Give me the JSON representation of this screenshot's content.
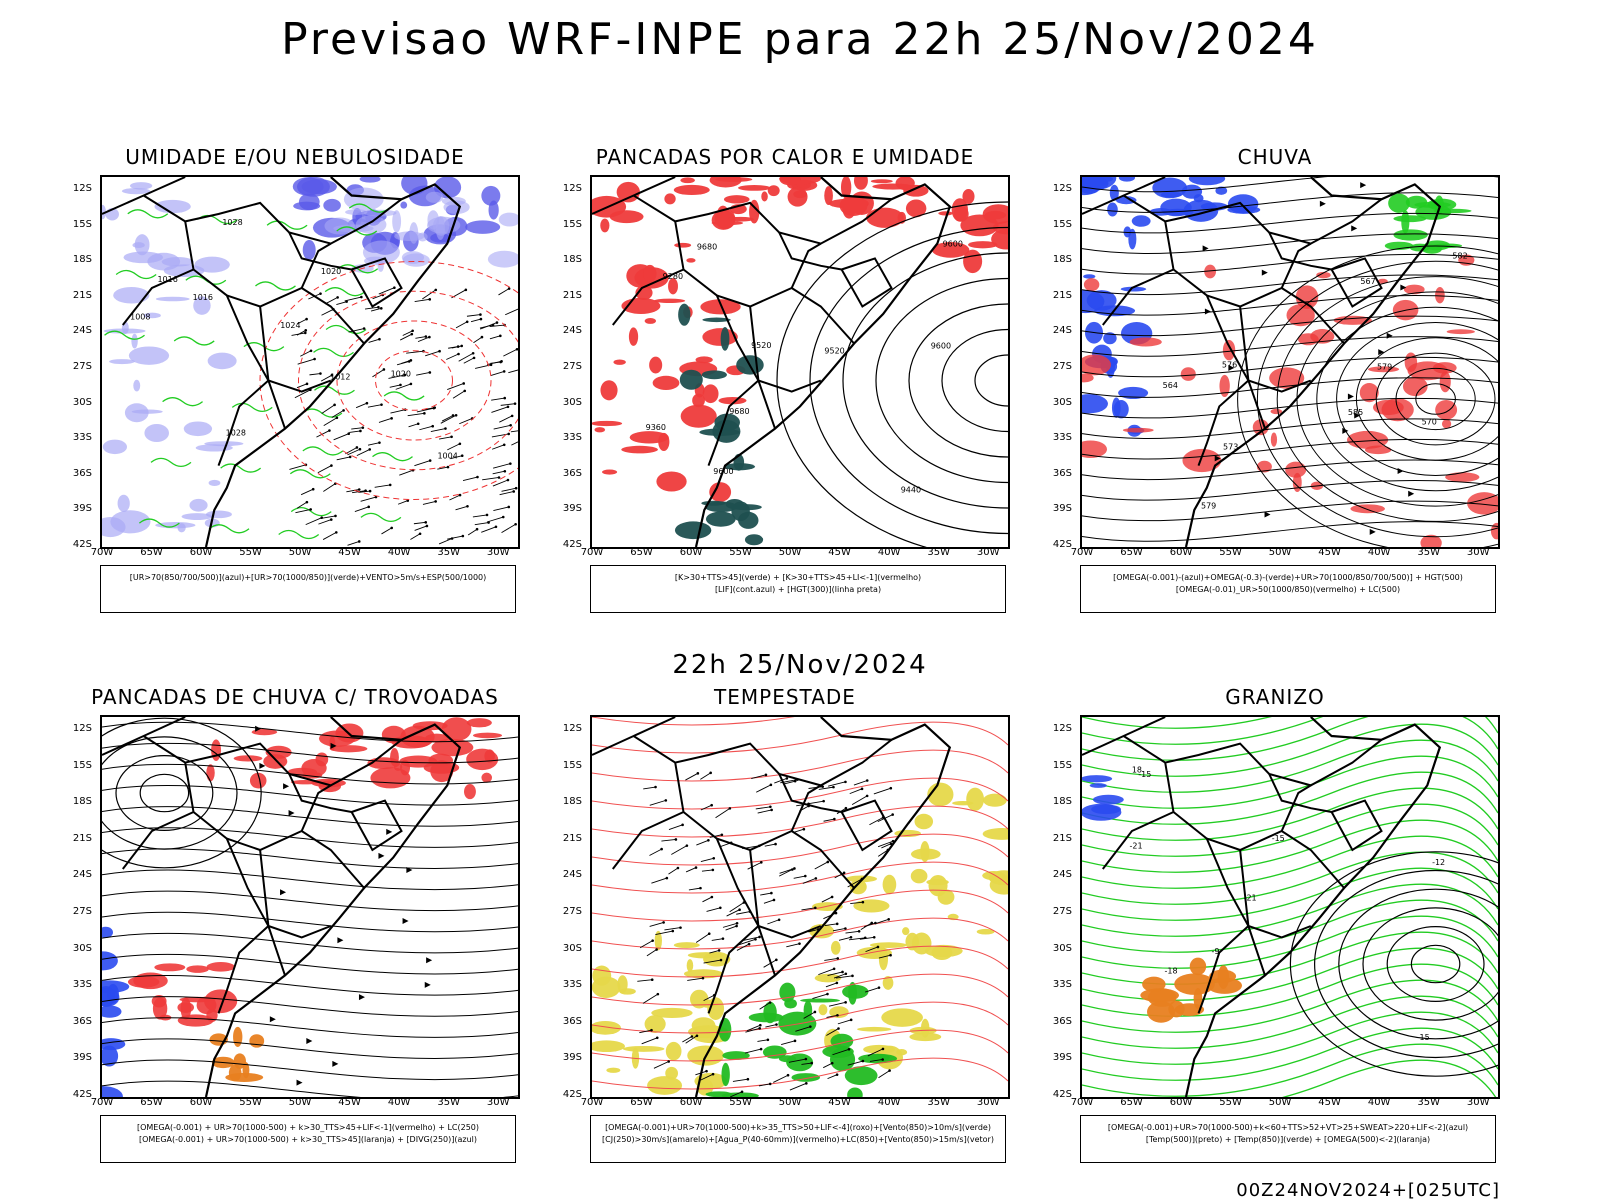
{
  "title": "Previsao WRF-INPE  para 22h 25/Nov/2024",
  "mid_date": "22h 25/Nov/2024",
  "footer": "00Z24NOV2024+[025UTC]",
  "axes": {
    "lat_labels": [
      "12S",
      "15S",
      "18S",
      "21S",
      "24S",
      "27S",
      "30S",
      "33S",
      "36S",
      "39S",
      "42S"
    ],
    "lon_labels": [
      "70W",
      "65W",
      "60W",
      "55W",
      "50W",
      "45W",
      "40W",
      "35W",
      "30W"
    ]
  },
  "panels": [
    {
      "id": "umidade",
      "title": "UMIDADE E/OU NEBULOSIDADE",
      "legend": [
        "[UR>70(850/700/500)](azul)+[UR>70(1000/850)](verde)+VENTO>5m/s+ESP(500/1000)"
      ],
      "labels": [
        "1016",
        "1016",
        "1024",
        "1028",
        "1028",
        "1020",
        "1008",
        "1012",
        "1004",
        "1020"
      ]
    },
    {
      "id": "pancadas-calor",
      "title": "PANCADAS POR CALOR E UMIDADE",
      "legend": [
        "[K>30+TTS>45](verde) + [K>30+TTS>45+LI<-1](vermelho)",
        "[LIF](cont.azul) + [HGT(300)](linha preta)"
      ],
      "labels": [
        "9680",
        "9600",
        "9520",
        "9440",
        "9360",
        "9280",
        "9520",
        "9600",
        "9680",
        "9600"
      ]
    },
    {
      "id": "chuva",
      "title": "CHUVA",
      "legend": [
        "[OMEGA(-0.001)-(azul)+OMEGA(-0.3)-(verde)+UR>70(1000/850/700/500)] + HGT(500)",
        "[OMEGA(-0.01)_UR>50(1000/850)(vermelho) + LC(500)"
      ],
      "labels": [
        "579",
        "585",
        "576",
        "573",
        "570",
        "567",
        "564",
        "582",
        "579"
      ]
    },
    {
      "id": "pancadas-trovoadas",
      "title": "PANCADAS DE CHUVA C/ TROVOADAS",
      "legend": [
        "[OMEGA(-0.001) + UR>70(1000-500) + k>30_TTS>45+LIF<-1](vermelho) + LC(250)",
        "[OMEGA(-0.001) + UR>70(1000-500) + k>30_TTS>45](laranja) + [DIVG(250)](azul)"
      ],
      "labels": []
    },
    {
      "id": "tempestade",
      "title": "TEMPESTADE",
      "legend": [
        "[OMEGA(-0.001)+UR>70(1000-500)+k>35_TTS>50+LIF<-4](roxo)+[Vento(850)>10m/s](verde)",
        "[CJ(250)>30m/s](amarelo)+[Agua_P(40-60mm)](vermelho)+LC(850)+[Vento(850)>15m/s](vetor)"
      ],
      "labels": []
    },
    {
      "id": "granizo",
      "title": "GRANIZO",
      "legend": [
        "[OMEGA(-0.001)+UR>70(1000-500)+k<60+TTS>52+VT>25+SWEAT>220+LIF<-2](azul)",
        "[Temp(500)](preto) + [Temp(850)](verde) + [OMEGA(500)<-2](laranja)"
      ],
      "labels": [
        "-21",
        "-21",
        "-18",
        "-12",
        "-9",
        "-15",
        "15",
        "18",
        "-15"
      ]
    }
  ]
}
